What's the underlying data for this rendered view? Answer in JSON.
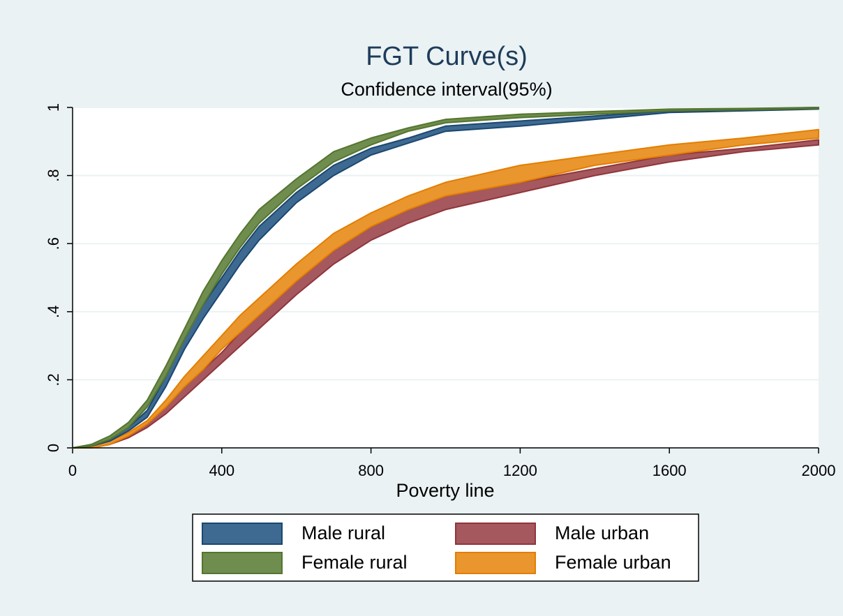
{
  "chart_data": {
    "type": "band",
    "title": "FGT Curve(s)",
    "subtitle": "Confidence interval(95%)",
    "x_label": "Poverty line",
    "x": [
      0,
      50,
      100,
      150,
      200,
      250,
      300,
      350,
      400,
      450,
      500,
      600,
      700,
      800,
      900,
      1000,
      1200,
      1400,
      1600,
      1800,
      2000
    ],
    "xlim": [
      0,
      2000
    ],
    "xticks": [
      0,
      400,
      800,
      1200,
      1600,
      2000
    ],
    "ylim": [
      0,
      1
    ],
    "yticks": [
      0,
      {
        "value": 0.2,
        "label": ".2"
      },
      {
        "value": 0.4,
        "label": ".4"
      },
      {
        "value": 0.6,
        "label": ".6"
      },
      {
        "value": 0.8,
        "label": ".8"
      },
      1
    ],
    "grid": true,
    "series": [
      {
        "name": "Male rural",
        "color": "#3e6a92",
        "edge": "#1a476f",
        "lower": [
          0,
          0.005,
          0.02,
          0.05,
          0.09,
          0.18,
          0.29,
          0.38,
          0.46,
          0.54,
          0.61,
          0.72,
          0.8,
          0.86,
          0.895,
          0.93,
          0.945,
          0.965,
          0.985,
          0.99,
          0.995
        ],
        "upper": [
          0,
          0.01,
          0.03,
          0.06,
          0.11,
          0.21,
          0.33,
          0.42,
          0.5,
          0.58,
          0.65,
          0.75,
          0.83,
          0.88,
          0.91,
          0.945,
          0.96,
          0.975,
          0.99,
          0.995,
          1
        ]
      },
      {
        "name": "Female rural",
        "color": "#6e8d4e",
        "edge": "#55752f",
        "lower": [
          0,
          0.005,
          0.025,
          0.06,
          0.12,
          0.21,
          0.32,
          0.42,
          0.51,
          0.59,
          0.66,
          0.76,
          0.84,
          0.89,
          0.93,
          0.955,
          0.97,
          0.98,
          0.99,
          0.993,
          0.997
        ],
        "upper": [
          0,
          0.01,
          0.035,
          0.075,
          0.14,
          0.24,
          0.35,
          0.46,
          0.55,
          0.63,
          0.7,
          0.79,
          0.87,
          0.91,
          0.94,
          0.965,
          0.98,
          0.988,
          0.995,
          0.997,
          1
        ]
      },
      {
        "name": "Male urban",
        "color": "#a5585e",
        "edge": "#90353b",
        "lower": [
          0,
          0,
          0.01,
          0.03,
          0.06,
          0.1,
          0.15,
          0.2,
          0.25,
          0.3,
          0.35,
          0.45,
          0.54,
          0.61,
          0.66,
          0.7,
          0.75,
          0.8,
          0.84,
          0.87,
          0.89
        ],
        "upper": [
          0,
          0.005,
          0.015,
          0.04,
          0.07,
          0.12,
          0.18,
          0.23,
          0.28,
          0.34,
          0.39,
          0.49,
          0.58,
          0.65,
          0.7,
          0.74,
          0.78,
          0.82,
          0.86,
          0.88,
          0.905
        ]
      },
      {
        "name": "Female urban",
        "color": "#ea962e",
        "edge": "#e37e00",
        "lower": [
          0,
          0,
          0.01,
          0.035,
          0.07,
          0.12,
          0.18,
          0.23,
          0.29,
          0.34,
          0.39,
          0.49,
          0.58,
          0.65,
          0.7,
          0.74,
          0.78,
          0.83,
          0.86,
          0.89,
          0.91
        ],
        "upper": [
          0,
          0.005,
          0.02,
          0.045,
          0.08,
          0.14,
          0.21,
          0.27,
          0.33,
          0.39,
          0.44,
          0.54,
          0.63,
          0.69,
          0.74,
          0.78,
          0.83,
          0.86,
          0.89,
          0.91,
          0.935
        ]
      }
    ]
  }
}
